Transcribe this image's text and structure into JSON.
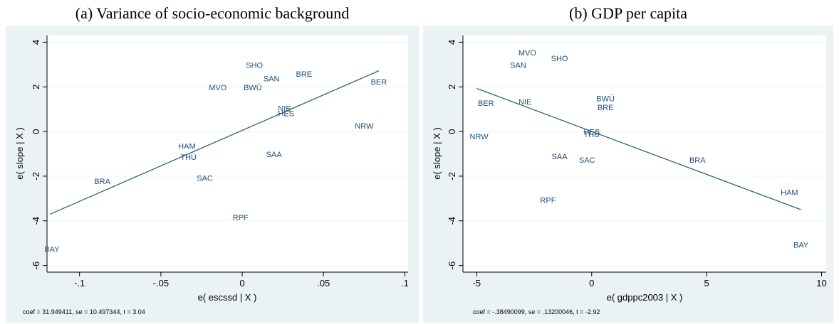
{
  "colors": {
    "line": "#2f6b5a",
    "label": "#1f4e79",
    "frame_bg": "#eaf2f3",
    "plot_bg": "#ffffff",
    "grid": "#eaf2f3",
    "axis": "#000000"
  },
  "chart_data": [
    {
      "type": "scatter",
      "title": "(a) Variance of socio-economic background",
      "xlabel": "e( escssd | X )",
      "ylabel": "e( slope | X )",
      "xlim": [
        -0.12,
        0.102
      ],
      "ylim": [
        -6.3,
        4.3
      ],
      "xticks": [
        -0.1,
        -0.05,
        0,
        0.05,
        0.1
      ],
      "xtick_labels": [
        "-.1",
        "-.05",
        "0",
        ".05",
        ".1"
      ],
      "yticks": [
        -6,
        -4,
        -2,
        0,
        2,
        4
      ],
      "ytick_labels": [
        "-6",
        "-4",
        "-2",
        "0",
        "2",
        "4"
      ],
      "grid": true,
      "points": [
        {
          "label": "SHO",
          "x": 0.0075,
          "y": 2.95
        },
        {
          "label": "SAN",
          "x": 0.018,
          "y": 2.35
        },
        {
          "label": "BRE",
          "x": 0.038,
          "y": 2.55
        },
        {
          "label": "BER",
          "x": 0.084,
          "y": 2.2
        },
        {
          "label": "MVO",
          "x": -0.015,
          "y": 1.95
        },
        {
          "label": "BWÜ",
          "x": 0.0065,
          "y": 1.95
        },
        {
          "label": "NIE",
          "x": 0.026,
          "y": 1.0
        },
        {
          "label": "HES",
          "x": 0.027,
          "y": 0.78
        },
        {
          "label": "NRW",
          "x": 0.075,
          "y": 0.22
        },
        {
          "label": "HAM",
          "x": -0.034,
          "y": -0.68
        },
        {
          "label": "THÜ",
          "x": -0.033,
          "y": -1.18
        },
        {
          "label": "SAA",
          "x": 0.0195,
          "y": -1.05
        },
        {
          "label": "SAC",
          "x": -0.023,
          "y": -2.12
        },
        {
          "label": "BRA",
          "x": -0.086,
          "y": -2.25
        },
        {
          "label": "RPF",
          "x": -0.001,
          "y": -3.88
        },
        {
          "label": "BAY",
          "x": -0.117,
          "y": -5.3
        }
      ],
      "fit_line": {
        "x": [
          -0.118,
          0.084
        ],
        "y": [
          -3.7,
          2.72
        ]
      },
      "note": "coef = 31.949411, se = 10.497344, t = 3.04"
    },
    {
      "type": "scatter",
      "title": "(b) GDP per capita",
      "xlabel": "e( gdppc2003 | X )",
      "ylabel": "e( slope | X )",
      "xlim": [
        -5.6,
        10.2
      ],
      "ylim": [
        -6.3,
        4.3
      ],
      "xticks": [
        -5,
        0,
        5,
        10
      ],
      "xtick_labels": [
        "-5",
        "0",
        "5",
        "10"
      ],
      "yticks": [
        -6,
        -4,
        -2,
        0,
        2,
        4
      ],
      "ytick_labels": [
        "-6",
        "-4",
        "-2",
        "0",
        "2",
        "4"
      ],
      "grid": true,
      "points": [
        {
          "label": "MVO",
          "x": -2.8,
          "y": 3.5
        },
        {
          "label": "SHO",
          "x": -1.4,
          "y": 3.25
        },
        {
          "label": "SAN",
          "x": -3.2,
          "y": 2.95
        },
        {
          "label": "BER",
          "x": -4.6,
          "y": 1.25
        },
        {
          "label": "NIE",
          "x": -2.9,
          "y": 1.3
        },
        {
          "label": "BWÜ",
          "x": 0.6,
          "y": 1.45
        },
        {
          "label": "BRE",
          "x": 0.6,
          "y": 1.05
        },
        {
          "label": "HES",
          "x": 0.0,
          "y": -0.05
        },
        {
          "label": "THÜ",
          "x": 0.0,
          "y": -0.15
        },
        {
          "label": "NRW",
          "x": -4.9,
          "y": -0.25
        },
        {
          "label": "SAA",
          "x": -1.4,
          "y": -1.15
        },
        {
          "label": "SAC",
          "x": -0.2,
          "y": -1.3
        },
        {
          "label": "BRA",
          "x": 4.6,
          "y": -1.3
        },
        {
          "label": "RPF",
          "x": -1.9,
          "y": -3.1
        },
        {
          "label": "HAM",
          "x": 8.6,
          "y": -2.75
        },
        {
          "label": "BAY",
          "x": 9.1,
          "y": -5.1
        }
      ],
      "fit_line": {
        "x": [
          -5.0,
          9.1
        ],
        "y": [
          1.93,
          -3.5
        ]
      },
      "note": "coef = -.38490099, se = .13200046, t = -2.92"
    }
  ]
}
